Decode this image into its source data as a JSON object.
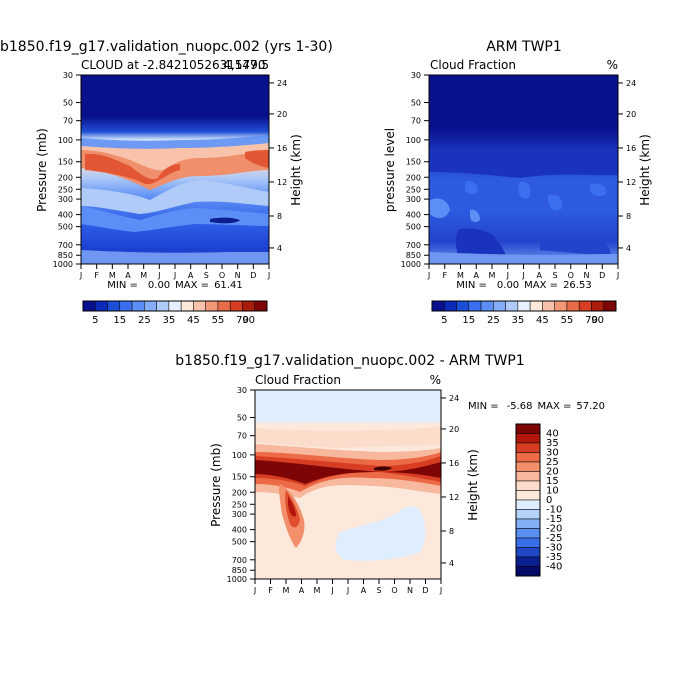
{
  "chart_data": [
    {
      "type": "heatmap",
      "title": "b1850.f19_g17.validation_nuopc.002 (yrs 1-30)",
      "subtitle_left": "CLOUD at -2.84210526315790",
      "subtitle_right": "4,147.5",
      "ylabel": "Pressure (mb)",
      "ylabel_right": "Height (km)",
      "x_ticks": [
        "J",
        "F",
        "M",
        "A",
        "M",
        "J",
        "J",
        "A",
        "S",
        "O",
        "N",
        "D",
        "J"
      ],
      "y_ticks": [
        "30",
        "50",
        "70",
        "100",
        "150",
        "200",
        "250",
        "300",
        "400",
        "500",
        "700",
        "850",
        "1000"
      ],
      "y_ticks_right": [
        "24",
        "20",
        "16",
        "12",
        "8",
        "4"
      ],
      "stats": {
        "min_label": "MIN =",
        "min": "0.00",
        "max_label": "MAX =",
        "max": "61.41"
      },
      "colorbar": {
        "orientation": "horizontal",
        "labels": [
          "5",
          "15",
          "25",
          "35",
          "45",
          "55",
          "70",
          "90"
        ]
      }
    },
    {
      "type": "heatmap",
      "title": "ARM TWP1",
      "subtitle_left": "Cloud Fraction",
      "units": "%",
      "ylabel": "pressure level",
      "ylabel_right": "Height (km)",
      "x_ticks": [
        "J",
        "F",
        "M",
        "A",
        "M",
        "J",
        "J",
        "A",
        "S",
        "O",
        "N",
        "D",
        "J"
      ],
      "y_ticks": [
        "30",
        "50",
        "70",
        "100",
        "150",
        "200",
        "250",
        "300",
        "400",
        "500",
        "700",
        "850",
        "1000"
      ],
      "y_ticks_right": [
        "24",
        "20",
        "16",
        "12",
        "8",
        "4"
      ],
      "stats": {
        "min_label": "MIN =",
        "min": "0.00",
        "max_label": "MAX =",
        "max": "26.53"
      },
      "colorbar": {
        "orientation": "horizontal",
        "labels": [
          "5",
          "15",
          "25",
          "35",
          "45",
          "55",
          "70",
          "90"
        ]
      }
    },
    {
      "type": "heatmap",
      "title": "b1850.f19_g17.validation_nuopc.002 - ARM TWP1",
      "subtitle_left": "Cloud Fraction",
      "units": "%",
      "ylabel": "Pressure (mb)",
      "ylabel_right": "Height (km)",
      "x_ticks": [
        "J",
        "F",
        "M",
        "A",
        "M",
        "J",
        "J",
        "A",
        "S",
        "O",
        "N",
        "D",
        "J"
      ],
      "y_ticks": [
        "30",
        "50",
        "70",
        "100",
        "150",
        "200",
        "250",
        "300",
        "400",
        "500",
        "700",
        "850",
        "1000"
      ],
      "y_ticks_right": [
        "24",
        "20",
        "16",
        "12",
        "8",
        "4"
      ],
      "stats": {
        "min_label": "MIN =",
        "min": "-5.68",
        "max_label": "MAX =",
        "max": "57.20"
      },
      "colorbar": {
        "orientation": "vertical",
        "labels": [
          "40",
          "35",
          "30",
          "25",
          "20",
          "15",
          "10",
          "0",
          "-10",
          "-15",
          "-20",
          "-25",
          "-30",
          "-35",
          "-40"
        ]
      }
    }
  ],
  "colors": {
    "seq_palette": [
      "#08108c",
      "#0c2ab8",
      "#1a4fd6",
      "#3b6ff0",
      "#5c8ef5",
      "#86acf7",
      "#b1cbf8",
      "#e6f0ff",
      "#fde8dc",
      "#f8c2ab",
      "#f29877",
      "#e96c4a",
      "#d63d22",
      "#aa1d0c",
      "#7d0505"
    ],
    "div_palette": [
      "#7d0505",
      "#b3160b",
      "#d63d22",
      "#ec6a45",
      "#f38f6b",
      "#f7b89d",
      "#fcdcca",
      "#fde8dc",
      "#dfeeff",
      "#b4d3f8",
      "#84aef3",
      "#5a8ff0",
      "#3a6ee6",
      "#2048c6",
      "#0c1f8e",
      "#050a69"
    ]
  }
}
